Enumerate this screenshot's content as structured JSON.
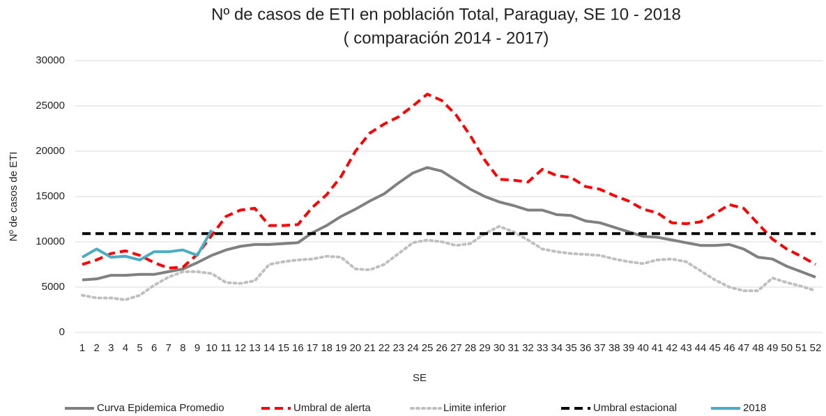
{
  "chart_data": {
    "type": "line",
    "title": "Nº de casos de ETI en población Total, Paraguay,  SE 10 - 2018",
    "subtitle": "( comparación 2014 - 2017)",
    "x_label": "SE",
    "y_label": "Nº de casos de ETI",
    "categories": [
      "1",
      "2",
      "3",
      "4",
      "5",
      "6",
      "7",
      "8",
      "9",
      "10",
      "11",
      "12",
      "13",
      "14",
      "15",
      "16",
      "17",
      "18",
      "19",
      "20",
      "21",
      "22",
      "23",
      "24",
      "25",
      "26",
      "27",
      "28",
      "29",
      "30",
      "31",
      "32",
      "33",
      "34",
      "35",
      "36",
      "37",
      "38",
      "39",
      "40",
      "41",
      "42",
      "43",
      "44",
      "45",
      "46",
      "47",
      "48",
      "49",
      "50",
      "51",
      "52"
    ],
    "ylim": [
      0,
      30000
    ],
    "yticks": [
      0,
      5000,
      10000,
      15000,
      20000,
      25000,
      30000
    ],
    "grid": true,
    "legend": "bottom",
    "series": [
      {
        "name": "Curva Epidemica Promedio",
        "color": "#808080",
        "style": "solid",
        "values": [
          5800,
          5900,
          6300,
          6300,
          6400,
          6400,
          6700,
          7000,
          7700,
          8500,
          9100,
          9500,
          9700,
          9700,
          9800,
          9900,
          11000,
          11800,
          12800,
          13600,
          14500,
          15300,
          16500,
          17600,
          18200,
          17800,
          16800,
          15800,
          15000,
          14400,
          14000,
          13500,
          13500,
          13000,
          12900,
          12300,
          12100,
          11600,
          11100,
          10600,
          10500,
          10200,
          9900,
          9600,
          9600,
          9700,
          9200,
          8300,
          8100,
          7300,
          6700,
          6100
        ]
      },
      {
        "name": "Umbral de alerta",
        "color": "#ff0000",
        "style": "dashed",
        "values": [
          7500,
          8000,
          8700,
          9000,
          8500,
          7700,
          7100,
          7200,
          8600,
          10700,
          12800,
          13500,
          13700,
          11800,
          11800,
          11900,
          13800,
          15200,
          17200,
          20000,
          22000,
          23000,
          23800,
          25000,
          26300,
          25600,
          24000,
          21700,
          19000,
          16900,
          16800,
          16600,
          18000,
          17300,
          17100,
          16100,
          15800,
          15100,
          14500,
          13600,
          13200,
          12100,
          12000,
          12200,
          13100,
          14100,
          13700,
          12000,
          10300,
          9200,
          8400,
          7500
        ]
      },
      {
        "name": "Limite inferior",
        "color": "#bfbfbf",
        "style": "dotted",
        "values": [
          4100,
          3800,
          3800,
          3600,
          4100,
          5200,
          6100,
          6700,
          6700,
          6500,
          5500,
          5400,
          5700,
          7500,
          7800,
          8000,
          8100,
          8400,
          8300,
          7000,
          6900,
          7500,
          8700,
          9900,
          10200,
          10000,
          9600,
          9800,
          10900,
          11700,
          11100,
          10200,
          9200,
          8900,
          8700,
          8600,
          8500,
          8100,
          7800,
          7600,
          8000,
          8100,
          7800,
          6800,
          5800,
          5000,
          4600,
          4600,
          6000,
          5500,
          5100,
          4600
        ]
      },
      {
        "name": "Umbral estacional",
        "color": "#000000",
        "style": "dashed",
        "values": [
          10900,
          10900,
          10900,
          10900,
          10900,
          10900,
          10900,
          10900,
          10900,
          10900,
          10900,
          10900,
          10900,
          10900,
          10900,
          10900,
          10900,
          10900,
          10900,
          10900,
          10900,
          10900,
          10900,
          10900,
          10900,
          10900,
          10900,
          10900,
          10900,
          10900,
          10900,
          10900,
          10900,
          10900,
          10900,
          10900,
          10900,
          10900,
          10900,
          10900,
          10900,
          10900,
          10900,
          10900,
          10900,
          10900,
          10900,
          10900,
          10900,
          10900,
          10900,
          10900
        ]
      },
      {
        "name": "2018",
        "color": "#4bacc6",
        "style": "solid",
        "values": [
          8300,
          9200,
          8300,
          8400,
          8000,
          8900,
          8900,
          9100,
          8500,
          11300,
          null,
          null,
          null,
          null,
          null,
          null,
          null,
          null,
          null,
          null,
          null,
          null,
          null,
          null,
          null,
          null,
          null,
          null,
          null,
          null,
          null,
          null,
          null,
          null,
          null,
          null,
          null,
          null,
          null,
          null,
          null,
          null,
          null,
          null,
          null,
          null,
          null,
          null,
          null,
          null,
          null,
          null
        ]
      }
    ]
  }
}
